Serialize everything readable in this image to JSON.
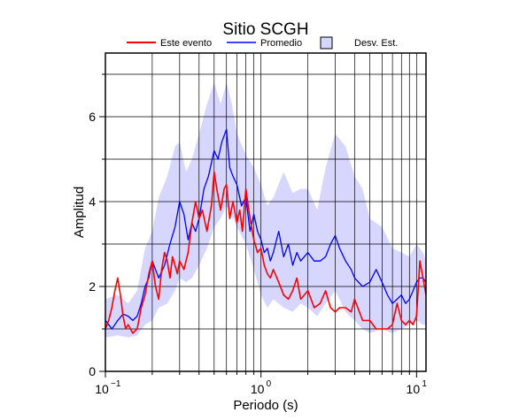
{
  "chart_data": {
    "type": "line",
    "title": "Sitio SCGH",
    "xlabel": "Periodo (s)",
    "ylabel": "Amplitud",
    "x_scale": "log",
    "xlim": [
      0.1,
      11.5
    ],
    "ylim": [
      0,
      7.5
    ],
    "grid": true,
    "legend_position": "top",
    "x_ticks": [
      {
        "value": 0.1,
        "base": "10",
        "exp": "−1"
      },
      {
        "value": 1,
        "base": "10",
        "exp": "0"
      },
      {
        "value": 10,
        "base": "10",
        "exp": "1"
      }
    ],
    "y_ticks": [
      0,
      2,
      4,
      6
    ],
    "legend": [
      {
        "label": "Este evento",
        "kind": "line",
        "color": "#ff0000"
      },
      {
        "label": "Promedio",
        "kind": "line",
        "color": "#0000ff"
      },
      {
        "label": "Desv. Est.",
        "kind": "band",
        "color": "#d6d6ff"
      }
    ],
    "series": [
      {
        "name": "Este evento",
        "color": "#ff0000",
        "x": [
          0.1,
          0.105,
          0.11,
          0.115,
          0.12,
          0.125,
          0.13,
          0.135,
          0.14,
          0.15,
          0.16,
          0.17,
          0.18,
          0.19,
          0.2,
          0.21,
          0.22,
          0.23,
          0.24,
          0.25,
          0.26,
          0.27,
          0.28,
          0.29,
          0.3,
          0.32,
          0.34,
          0.36,
          0.38,
          0.4,
          0.42,
          0.45,
          0.48,
          0.5,
          0.52,
          0.55,
          0.58,
          0.6,
          0.63,
          0.66,
          0.7,
          0.73,
          0.76,
          0.8,
          0.85,
          0.9,
          0.95,
          1.0,
          1.05,
          1.1,
          1.15,
          1.2,
          1.3,
          1.4,
          1.5,
          1.6,
          1.7,
          1.8,
          1.9,
          2.0,
          2.2,
          2.4,
          2.6,
          2.8,
          3.0,
          3.2,
          3.5,
          3.8,
          4.0,
          4.5,
          5.0,
          5.5,
          6.0,
          6.5,
          7.0,
          7.5,
          8.0,
          8.5,
          9.0,
          9.5,
          10.0,
          10.5,
          11.0,
          11.5
        ],
        "values": [
          1.0,
          1.2,
          1.5,
          1.9,
          2.2,
          1.8,
          1.3,
          1.0,
          1.1,
          0.9,
          1.0,
          1.5,
          1.8,
          2.3,
          2.6,
          2.0,
          1.7,
          2.4,
          2.8,
          2.6,
          2.2,
          2.7,
          2.5,
          2.3,
          2.6,
          2.4,
          2.8,
          3.5,
          4.0,
          3.6,
          3.8,
          3.3,
          3.9,
          4.7,
          4.3,
          3.8,
          4.3,
          4.4,
          3.6,
          4.0,
          3.5,
          3.8,
          3.3,
          4.3,
          3.6,
          3.1,
          2.8,
          2.9,
          2.5,
          2.3,
          2.2,
          2.4,
          2.1,
          1.8,
          1.7,
          1.9,
          2.2,
          1.7,
          1.8,
          1.9,
          1.5,
          1.6,
          1.9,
          1.5,
          1.4,
          1.5,
          1.5,
          1.4,
          1.7,
          1.2,
          1.2,
          1.0,
          1.0,
          1.0,
          1.1,
          1.6,
          1.2,
          1.1,
          1.2,
          1.1,
          1.3,
          2.6,
          2.2,
          1.8
        ]
      },
      {
        "name": "Promedio",
        "color": "#0000ff",
        "x": [
          0.1,
          0.105,
          0.11,
          0.115,
          0.12,
          0.13,
          0.14,
          0.15,
          0.16,
          0.17,
          0.18,
          0.19,
          0.2,
          0.22,
          0.24,
          0.26,
          0.28,
          0.3,
          0.32,
          0.34,
          0.36,
          0.38,
          0.4,
          0.43,
          0.46,
          0.5,
          0.53,
          0.56,
          0.6,
          0.63,
          0.66,
          0.7,
          0.75,
          0.8,
          0.85,
          0.9,
          0.95,
          1.0,
          1.05,
          1.1,
          1.15,
          1.2,
          1.3,
          1.4,
          1.5,
          1.6,
          1.7,
          1.8,
          2.0,
          2.2,
          2.4,
          2.6,
          2.8,
          3.0,
          3.2,
          3.5,
          3.8,
          4.0,
          4.5,
          5.0,
          5.5,
          6.0,
          6.5,
          7.0,
          7.5,
          8.0,
          8.5,
          9.0,
          9.5,
          10.0,
          10.5,
          11.0,
          11.5
        ],
        "values": [
          1.2,
          1.1,
          1.0,
          1.1,
          1.2,
          1.35,
          1.3,
          1.2,
          1.3,
          1.6,
          2.0,
          2.2,
          2.6,
          2.2,
          2.5,
          3.0,
          3.4,
          4.0,
          3.7,
          3.1,
          3.5,
          3.3,
          3.6,
          4.3,
          4.6,
          5.2,
          5.0,
          5.4,
          5.7,
          4.8,
          4.6,
          4.4,
          3.9,
          4.1,
          3.3,
          3.7,
          3.3,
          3.1,
          2.8,
          2.9,
          2.6,
          2.8,
          3.3,
          2.7,
          3.0,
          2.5,
          2.8,
          2.6,
          2.8,
          2.6,
          2.6,
          2.7,
          3.0,
          3.2,
          2.9,
          2.6,
          2.4,
          2.2,
          2.0,
          2.1,
          2.4,
          2.1,
          1.8,
          1.6,
          1.7,
          1.8,
          1.6,
          1.7,
          1.9,
          2.1,
          2.2,
          2.2,
          2.1
        ]
      }
    ],
    "band": {
      "name": "Desv. Est.",
      "color": "#d6d6ff",
      "x": [
        0.1,
        0.12,
        0.14,
        0.16,
        0.18,
        0.2,
        0.22,
        0.25,
        0.28,
        0.3,
        0.33,
        0.36,
        0.4,
        0.45,
        0.5,
        0.55,
        0.6,
        0.65,
        0.7,
        0.8,
        0.9,
        1.0,
        1.1,
        1.2,
        1.4,
        1.6,
        1.8,
        2.0,
        2.3,
        2.6,
        3.0,
        3.5,
        4.0,
        4.5,
        5.0,
        6.0,
        7.0,
        8.0,
        9.0,
        10.0,
        11.0,
        11.5
      ],
      "lower": [
        0.8,
        0.85,
        0.8,
        0.85,
        1.1,
        1.2,
        1.5,
        1.6,
        1.9,
        2.2,
        2.1,
        2.2,
        2.5,
        2.9,
        3.4,
        3.6,
        3.9,
        3.7,
        3.4,
        3.0,
        2.4,
        1.8,
        1.5,
        1.7,
        1.5,
        1.4,
        1.6,
        1.5,
        1.3,
        1.6,
        1.9,
        1.4,
        1.2,
        1.0,
        0.9,
        1.0,
        0.9,
        1.0,
        1.1,
        1.2,
        1.1,
        1.1
      ],
      "upper": [
        1.7,
        1.8,
        1.6,
        1.9,
        2.9,
        3.3,
        4.1,
        4.6,
        5.3,
        5.4,
        4.7,
        5.0,
        5.6,
        6.3,
        6.8,
        6.3,
        6.8,
        6.3,
        5.6,
        5.1,
        4.8,
        4.4,
        3.9,
        4.1,
        4.7,
        4.2,
        4.3,
        4.3,
        3.8,
        4.8,
        5.6,
        5.3,
        4.6,
        4.3,
        3.6,
        3.4,
        2.9,
        2.8,
        2.7,
        3.0,
        2.8,
        2.6
      ]
    }
  }
}
